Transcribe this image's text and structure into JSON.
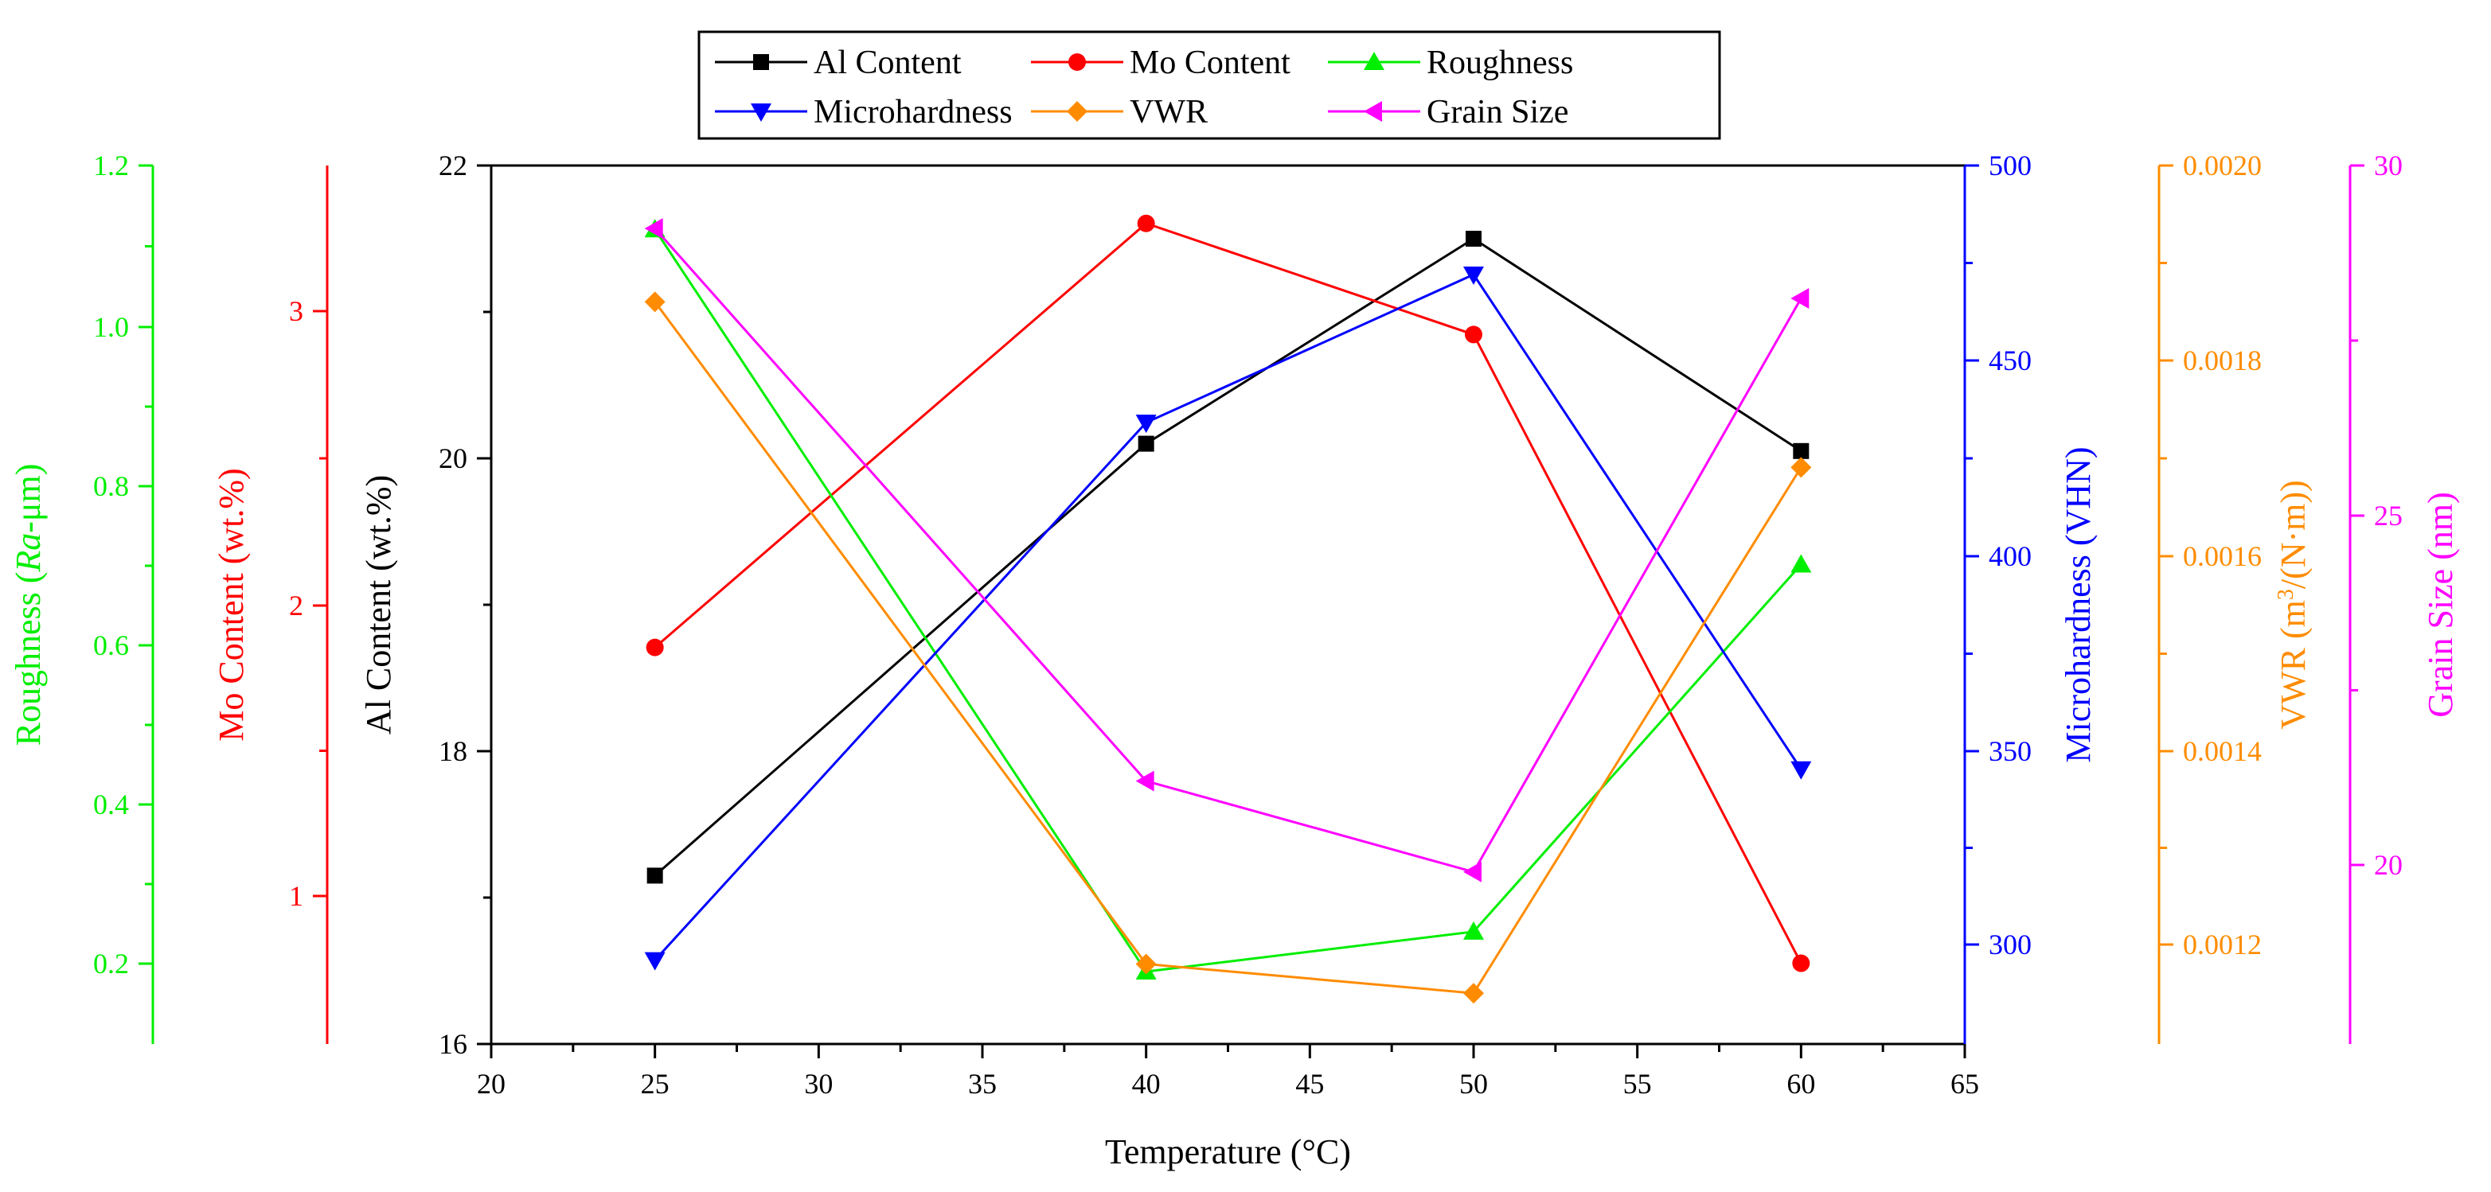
{
  "chart_data": {
    "type": "line",
    "x": [
      25,
      40,
      50,
      60
    ],
    "xlabel": "Temperature (°C)",
    "xlim": [
      20,
      65
    ],
    "xticks": [
      "20",
      "25",
      "30",
      "35",
      "40",
      "45",
      "50",
      "55",
      "60",
      "65"
    ],
    "series": [
      {
        "name": "Al Content",
        "values": [
          17.15,
          20.1,
          21.5,
          20.05
        ],
        "color": "#000000",
        "marker": "square",
        "axis": "al"
      },
      {
        "name": "Mo Content",
        "values": [
          1.85,
          3.3,
          2.92,
          0.77
        ],
        "color": "#ff0000",
        "marker": "circle",
        "axis": "mo"
      },
      {
        "name": "Roughness",
        "values": [
          1.12,
          0.19,
          0.24,
          0.7
        ],
        "color": "#00ee00",
        "marker": "triangle-up",
        "axis": "roughness"
      },
      {
        "name": "Microhardness",
        "values": [
          296,
          434,
          472,
          345
        ],
        "color": "#0000ff",
        "marker": "triangle-down",
        "axis": "micro"
      },
      {
        "name": "VWR",
        "values": [
          0.00186,
          0.00118,
          0.00115,
          0.00169
        ],
        "color": "#ff8c00",
        "marker": "diamond",
        "axis": "vwr"
      },
      {
        "name": "Grain Size",
        "values": [
          29.1,
          21.2,
          19.9,
          28.1
        ],
        "color": "#ff00ff",
        "marker": "triangle-left",
        "axis": "grain"
      }
    ],
    "axes": {
      "roughness": {
        "title_prefix": "Roughness (",
        "title_italic": "Ra",
        "title_suffix": "-μm)",
        "ticks": [
          "0.2",
          "0.4",
          "0.6",
          "0.8",
          "1.0",
          "1.2"
        ],
        "range": [
          0.1,
          1.2
        ],
        "color": "#00ee00"
      },
      "mo": {
        "title": "Mo Content (wt.%)",
        "ticks": [
          "1",
          "2",
          "3"
        ],
        "range": [
          0.5,
          3.5
        ],
        "color": "#ff0000"
      },
      "al": {
        "title": "Al Content (wt.%)",
        "ticks": [
          "16",
          "18",
          "20",
          "22"
        ],
        "range": [
          16,
          22
        ],
        "color": "#000000"
      },
      "micro": {
        "title": "Microhardness (VHN)",
        "ticks": [
          "300",
          "350",
          "400",
          "450",
          "500"
        ],
        "range": [
          275,
          500
        ],
        "color": "#0000ff"
      },
      "vwr": {
        "title_prefix": "VWR (m",
        "title_sup": "3",
        "title_suffix": "/(N·m))",
        "ticks": [
          "0.0012",
          "0.0014",
          "0.0016",
          "0.0018",
          "0.0020"
        ],
        "range": [
          0.0011,
          0.002
        ],
        "color": "#ff8c00"
      },
      "grain": {
        "title": "Grain Size (nm)",
        "ticks": [
          "20",
          "25",
          "30"
        ],
        "range": [
          17.5,
          30
        ],
        "color": "#ff00ff"
      }
    },
    "legend": {
      "position": "top-center",
      "columns": 3,
      "frame": true
    }
  }
}
